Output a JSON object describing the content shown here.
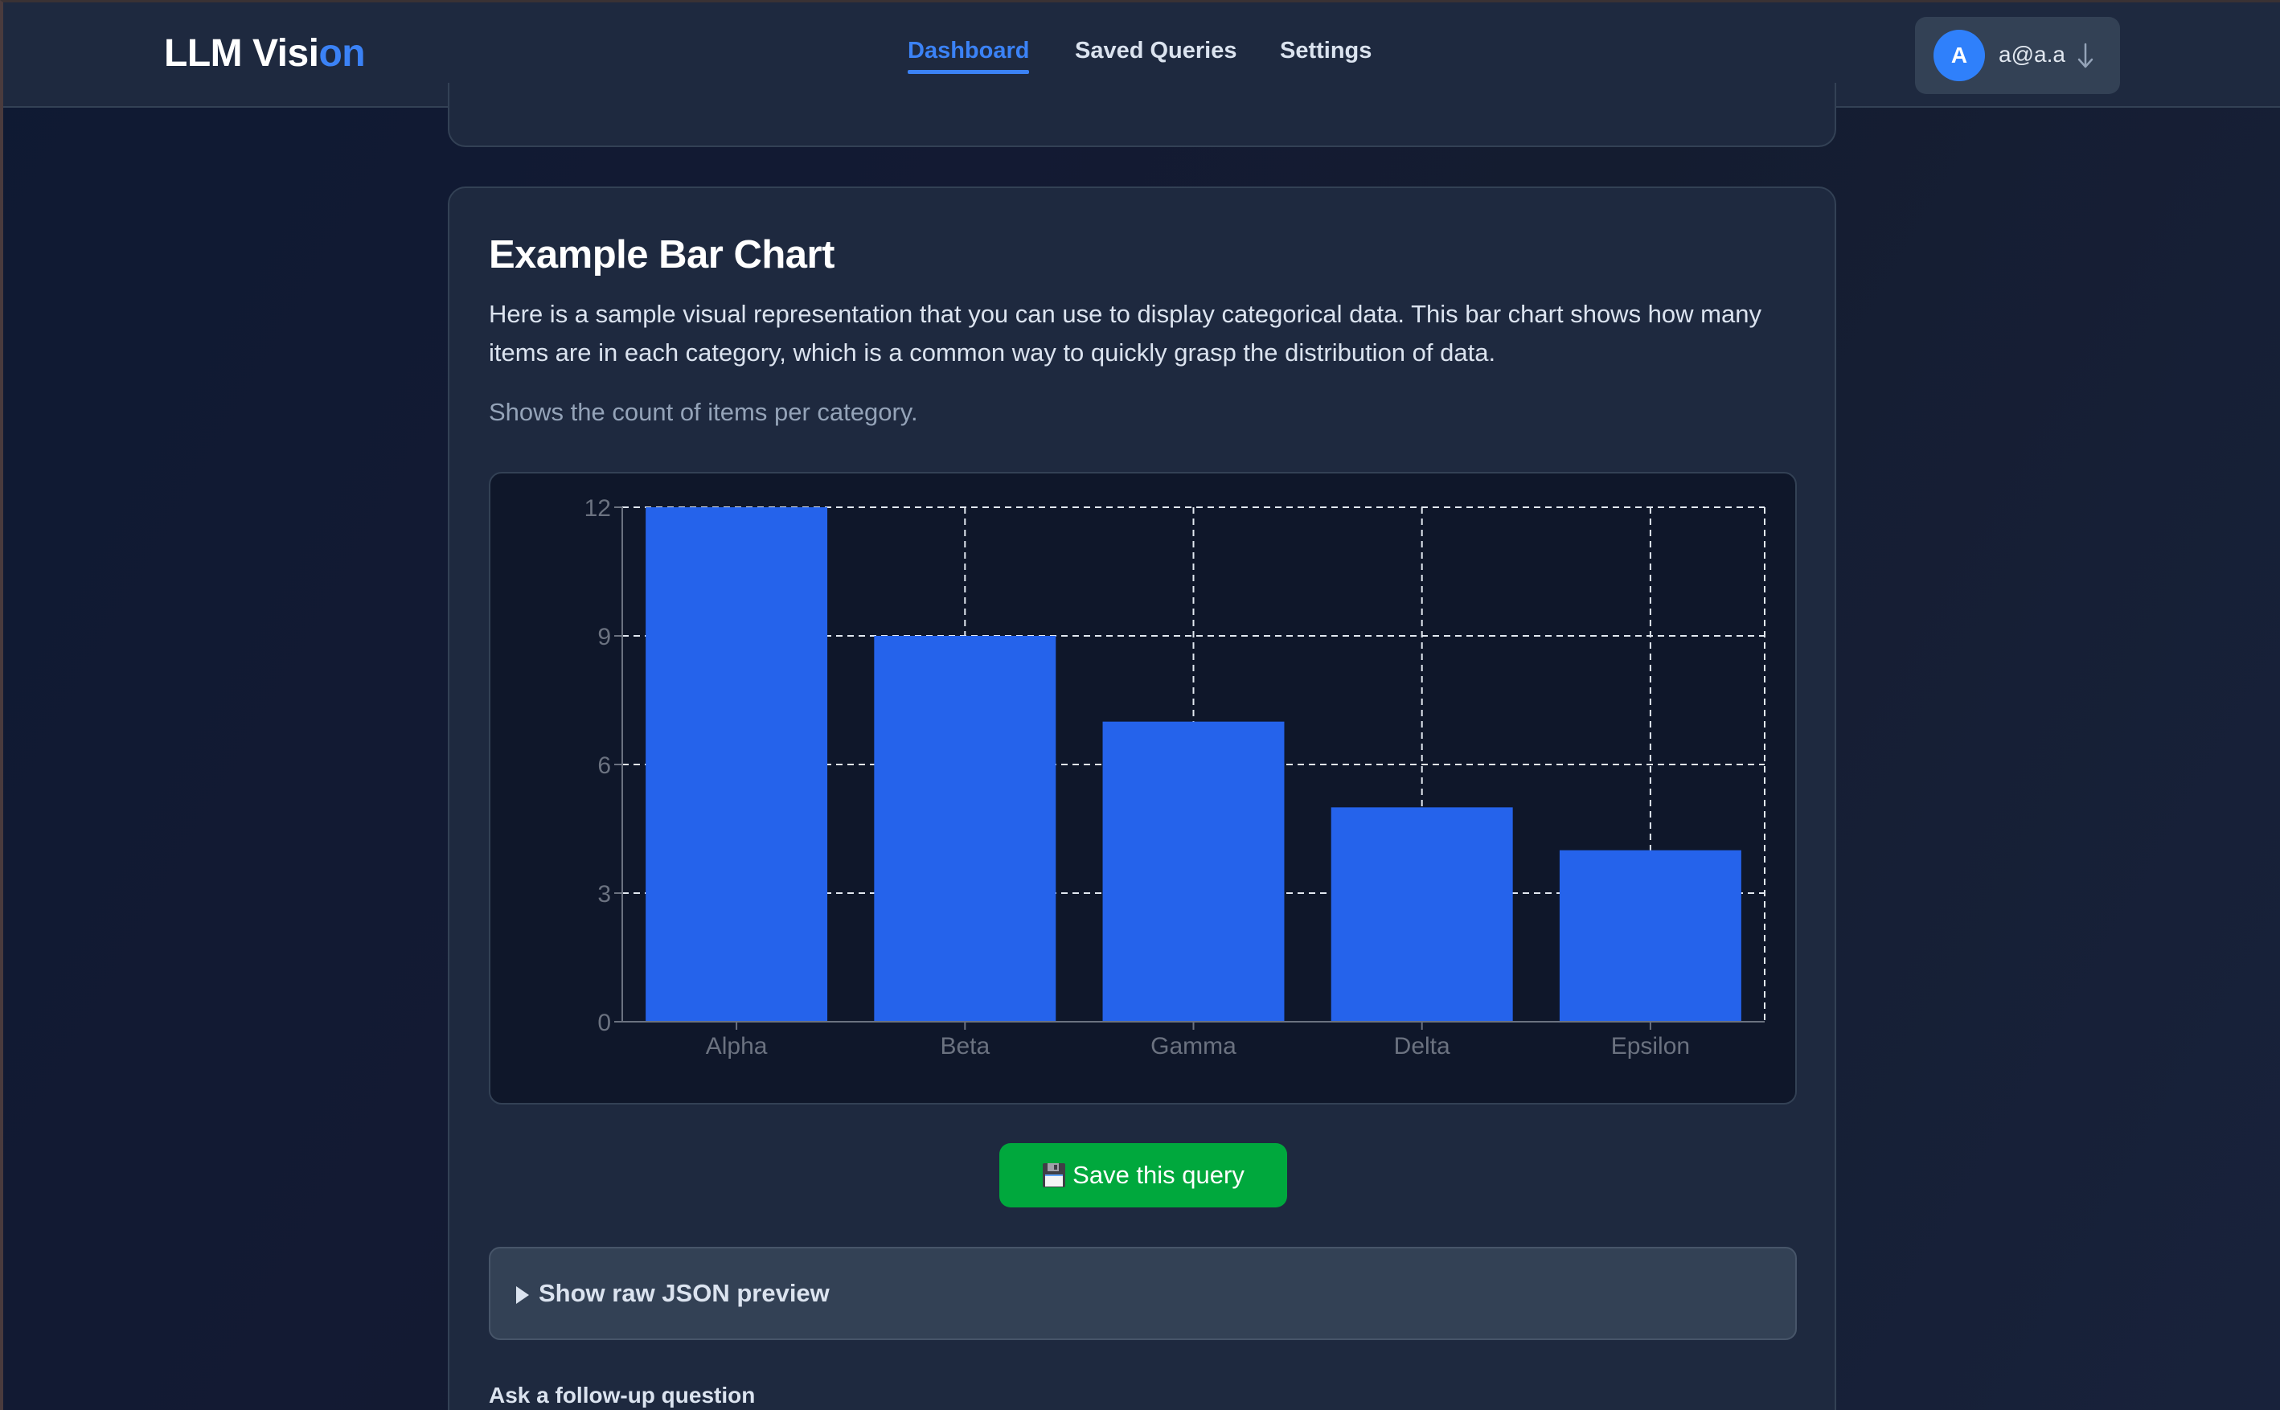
{
  "header": {
    "logo_main": "LLM Visi",
    "logo_accent": "on",
    "nav": [
      {
        "label": "Dashboard",
        "active": true
      },
      {
        "label": "Saved Queries",
        "active": false
      },
      {
        "label": "Settings",
        "active": false
      }
    ],
    "user": {
      "avatar_initial": "A",
      "email": "a@a.a",
      "menu_icon": "arrow-down-icon"
    }
  },
  "card": {
    "title": "Example Bar Chart",
    "description": "Here is a sample visual representation that you can use to display categorical data. This bar chart shows how many items are in each category, which is a common way to quickly grasp the distribution of data.",
    "subtitle": "Shows the count of items per category.",
    "save_button": {
      "icon": "floppy-disk-icon",
      "label": "Save this query"
    },
    "json_preview": {
      "icon": "triangle-right-icon",
      "label": "Show raw JSON preview"
    },
    "followup_label": "Ask a follow-up question"
  },
  "colors": {
    "accent": "#3b82f6",
    "bar": "#2563eb",
    "save_button": "#00a83d",
    "card_bg": "#1e293f",
    "chart_bg": "#0f172a"
  },
  "chart_data": {
    "type": "bar",
    "title": "",
    "categories": [
      "Alpha",
      "Beta",
      "Gamma",
      "Delta",
      "Epsilon"
    ],
    "values": [
      12,
      9,
      7,
      5,
      4
    ],
    "xlabel": "",
    "ylabel": "",
    "ylim": [
      0,
      12
    ],
    "yticks": [
      0,
      3,
      6,
      9,
      12
    ],
    "grid": true,
    "legend": null,
    "bar_color": "#2563eb"
  }
}
